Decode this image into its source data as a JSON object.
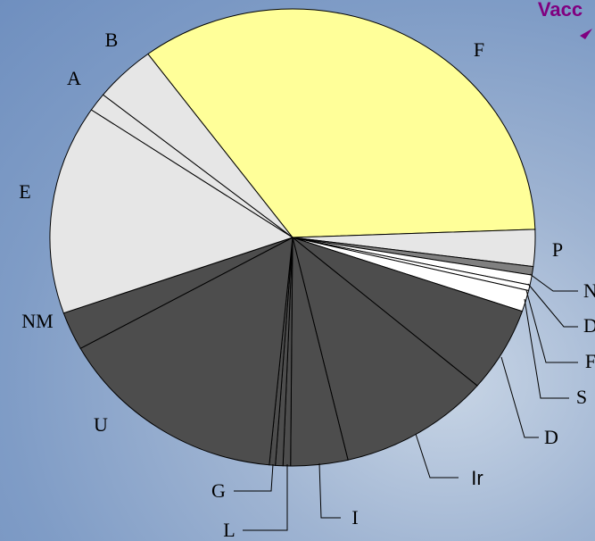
{
  "chart_data": {
    "type": "pie",
    "annotation": "Vacc",
    "categories": [
      "F",
      "P",
      "N",
      "D",
      "F",
      "S",
      "D",
      "Ir",
      "I",
      "L",
      null,
      "G",
      "U",
      "NM",
      "E",
      "A",
      "B"
    ],
    "values": [
      34.6,
      2.6,
      0.6,
      0.7,
      0.4,
      1.5,
      6.0,
      10.1,
      3.8,
      0.5,
      0.5,
      0.4,
      15.4,
      2.7,
      14.8,
      1.3,
      4.1
    ],
    "colors": [
      "#ffff99",
      "#e6e6e6",
      "#808080",
      "#ffffff",
      "#ffffff",
      "#ffffff",
      "#4d4d4d",
      "#4d4d4d",
      "#4d4d4d",
      "#4d4d4d",
      "#4d4d4d",
      "#4d4d4d",
      "#4d4d4d",
      "#4d4d4d",
      "#e6e6e6",
      "#e6e6e6",
      "#e6e6e6"
    ]
  }
}
